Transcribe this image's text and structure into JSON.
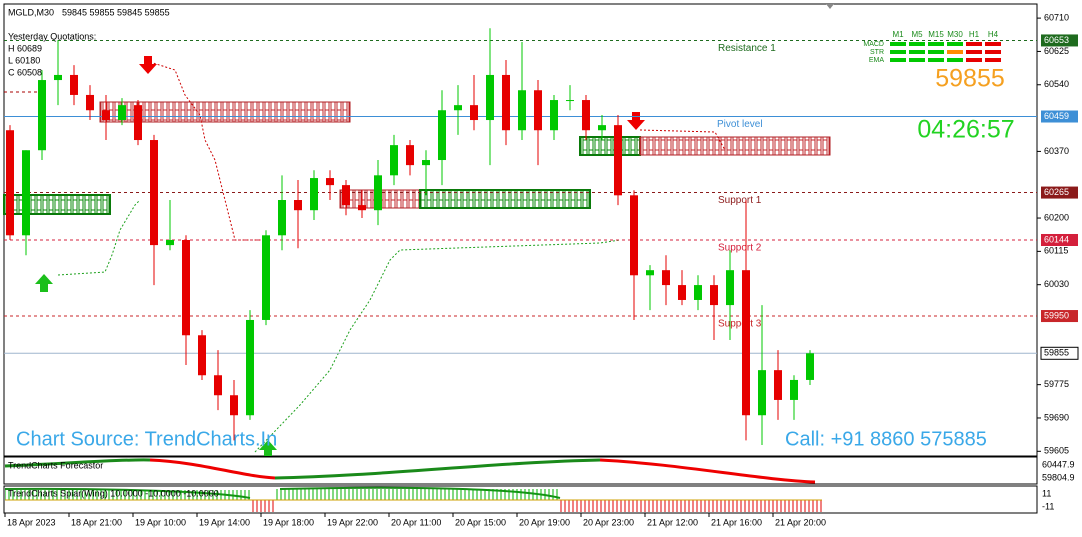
{
  "header": {
    "symbol": "MGLD,M30",
    "ohlc": "59845 59855 59845 59855"
  },
  "yesterday": {
    "title": "Yesterday Quotations:",
    "lines": [
      "H 60689",
      "L 60180",
      "C 60508"
    ]
  },
  "signals": {
    "timeframes": [
      "M1",
      "M5",
      "M15",
      "M30",
      "H1",
      "H4"
    ],
    "rows": [
      {
        "name": "MACD",
        "colors": [
          "#00c800",
          "#00c800",
          "#00c800",
          "#00c800",
          "#e60000",
          "#e60000"
        ]
      },
      {
        "name": "STR",
        "colors": [
          "#00c800",
          "#00c800",
          "#00c800",
          "#ff8c00",
          "#e60000",
          "#e60000"
        ]
      },
      {
        "name": "EMA",
        "colors": [
          "#00c800",
          "#00c800",
          "#00c800",
          "#00c800",
          "#e60000",
          "#e60000"
        ]
      }
    ]
  },
  "price_display": "59855",
  "timer": "04:26:57",
  "source": "Chart Source: TrendCharts.In",
  "call": "Call: +91 8860 575885",
  "indicators": [
    {
      "name": "TrendCharts Forecastor",
      "yticks": [
        "60447.9",
        "59804.9"
      ]
    },
    {
      "name": "TrendCharts Spiar(Wing) 10.0000 -10.0000 -10.0000",
      "yticks": [
        "11",
        "-11"
      ]
    }
  ],
  "chart_data": {
    "type": "candlestick",
    "categories": [
      "18 Apr 2023",
      null,
      null,
      null,
      "18 Apr 21:00",
      null,
      null,
      null,
      "19 Apr 10:00",
      null,
      null,
      null,
      "19 Apr 14:00",
      null,
      null,
      null,
      "19 Apr 18:00",
      null,
      null,
      null,
      "19 Apr 22:00",
      null,
      null,
      null,
      "20 Apr 11:00",
      null,
      null,
      null,
      "20 Apr 15:00",
      null,
      null,
      null,
      "20 Apr 19:00",
      null,
      null,
      null,
      "20 Apr 23:00",
      null,
      null,
      null,
      "21 Apr 12:00",
      null,
      null,
      null,
      "21 Apr 16:00",
      null,
      null,
      null,
      "21 Apr 20:00",
      null,
      null
    ],
    "open": [
      60424,
      60156,
      60373,
      60552,
      60565,
      60514,
      60475,
      60450,
      60488,
      60399,
      60131,
      60144,
      59901,
      59799,
      59748,
      59697,
      59940,
      60156,
      60246,
      60220,
      60302,
      60284,
      60233,
      60220,
      60309,
      60386,
      60335,
      60348,
      60475,
      60488,
      60450,
      60565,
      60424,
      60526,
      60424,
      60501,
      60501,
      60424,
      60437,
      60258,
      60054,
      60067,
      60029,
      59991,
      60029,
      59978,
      60067,
      59697,
      59812,
      59736,
      59787
    ],
    "high": [
      60437,
      60373,
      60577,
      60654,
      60590,
      60539,
      60514,
      60506,
      60501,
      60412,
      60246,
      60156,
      59914,
      59863,
      59787,
      59965,
      60169,
      60309,
      60297,
      60322,
      60322,
      60297,
      60271,
      60348,
      60412,
      60399,
      60373,
      60526,
      60539,
      60565,
      60684,
      60603,
      60649,
      60552,
      60514,
      60539,
      60514,
      60463,
      60463,
      60271,
      60080,
      60105,
      60067,
      60054,
      60054,
      60118,
      60246,
      59978,
      59863,
      59799,
      59863
    ],
    "low": [
      60144,
      60105,
      60348,
      60488,
      60488,
      60450,
      60399,
      60437,
      60386,
      60029,
      60118,
      59825,
      59787,
      59710,
      59633,
      59685,
      59927,
      60118,
      60123,
      60195,
      60246,
      60207,
      60200,
      60182,
      60284,
      60309,
      60258,
      60284,
      60412,
      60424,
      60335,
      60386,
      60399,
      60335,
      60399,
      60475,
      60399,
      60399,
      60233,
      59940,
      59965,
      59978,
      59978,
      59965,
      59889,
      59889,
      59633,
      59621,
      59685,
      59685,
      59774
    ],
    "close": [
      60156,
      60373,
      60552,
      60565,
      60514,
      60475,
      60450,
      60488,
      60399,
      60131,
      60144,
      59901,
      59799,
      59748,
      59697,
      59940,
      60156,
      60246,
      60220,
      60302,
      60284,
      60233,
      60220,
      60309,
      60386,
      60335,
      60348,
      60475,
      60488,
      60450,
      60565,
      60424,
      60526,
      60424,
      60501,
      60501,
      60424,
      60437,
      60258,
      60054,
      60067,
      60029,
      59991,
      60029,
      59978,
      60067,
      59697,
      59812,
      59736,
      59787,
      59855
    ],
    "up_color": "#00c800",
    "down_color": "#e60000",
    "ylim": [
      59593,
      60746
    ],
    "yticks": [
      60710,
      60625,
      60540,
      60370,
      60200,
      60115,
      60030,
      59775,
      59690,
      59605
    ],
    "levels": [
      {
        "name": "Resistance 1",
        "value": 60653,
        "color": "#1e6b1e",
        "dash": true
      },
      {
        "name": "Pivot level",
        "value": 60459,
        "color": "#3d8fd6",
        "dash": false
      },
      {
        "name": "Support 1",
        "value": 60265,
        "color": "#8b1a1a",
        "dash": true
      },
      {
        "name": "Support 2",
        "value": 60144,
        "color": "#d4203c",
        "dash": true
      },
      {
        "name": "Support 3",
        "value": 59950,
        "color": "#c8262a",
        "dash": true
      }
    ],
    "last_price": 59855
  }
}
